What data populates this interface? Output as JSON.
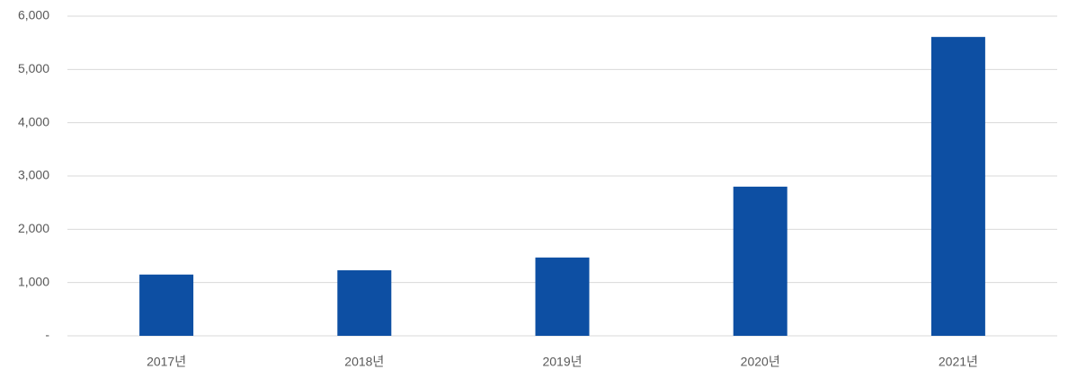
{
  "chart_data": {
    "type": "bar",
    "categories": [
      "2017년",
      "2018년",
      "2019년",
      "2020년",
      "2021년"
    ],
    "values": [
      1150,
      1230,
      1470,
      2800,
      5610
    ],
    "color": "#0d4fa3",
    "ylim": [
      0,
      6000
    ],
    "yticks": [
      {
        "value": 0,
        "label": "-"
      },
      {
        "value": 1000,
        "label": "1,000"
      },
      {
        "value": 2000,
        "label": "2,000"
      },
      {
        "value": 3000,
        "label": "3,000"
      },
      {
        "value": 4000,
        "label": "4,000"
      },
      {
        "value": 5000,
        "label": "5,000"
      },
      {
        "value": 6000,
        "label": "6,000"
      }
    ],
    "grid": true
  }
}
